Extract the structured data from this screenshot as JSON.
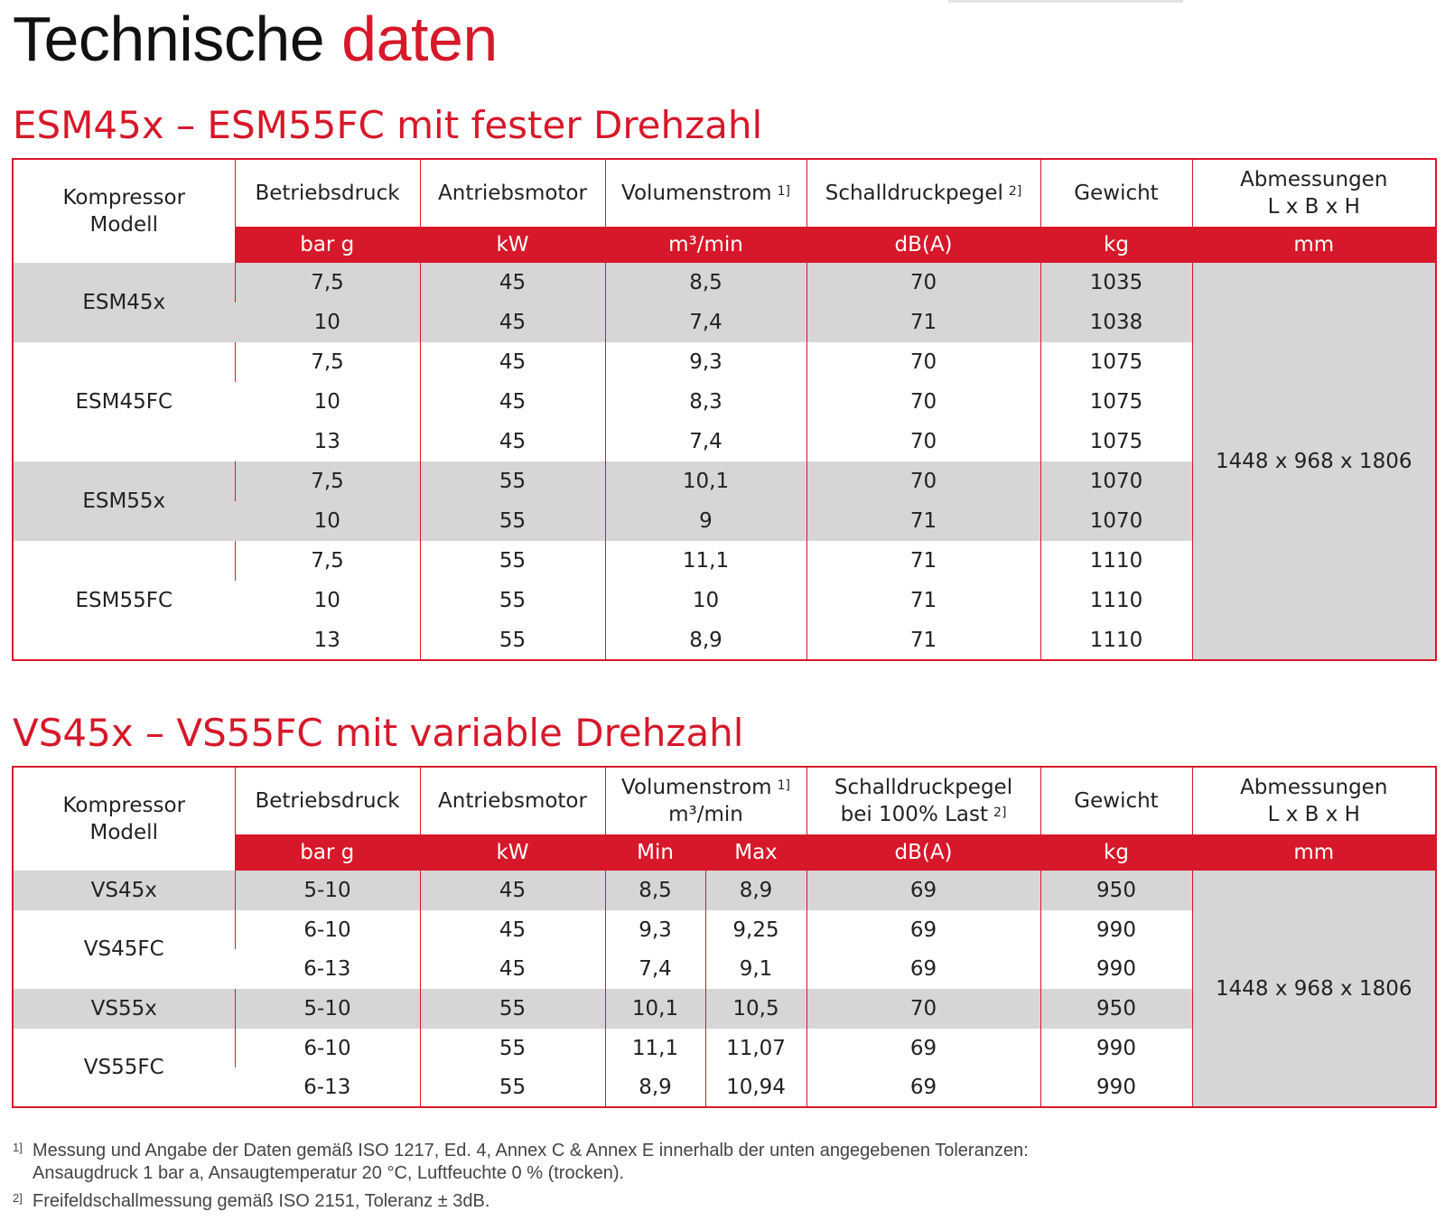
{
  "title": {
    "part1": "Technische",
    "part2": "daten"
  },
  "table1": {
    "title": "ESM45x – ESM55FC mit fester Drehzahl",
    "headers": {
      "model": [
        "Kompressor",
        "Modell"
      ],
      "pressure": "Betriebsdruck",
      "motor": "Antriebsmotor",
      "flow": "Volumenstrom",
      "flow_sup": "1]",
      "noise": "Schalldruckpegel",
      "noise_sup": "2]",
      "weight": "Gewicht",
      "dims": [
        "Abmessungen",
        "L x B x H"
      ]
    },
    "units": {
      "pressure": "bar g",
      "motor": "kW",
      "flow": "m³/min",
      "noise": "dB(A)",
      "weight": "kg",
      "dims": "mm"
    },
    "dims_value": "1448 x 968 x 1806",
    "groups": [
      {
        "model": "ESM45x",
        "rows": [
          {
            "pressure": "7,5",
            "motor": "45",
            "flow": "8,5",
            "noise": "70",
            "weight": "1035"
          },
          {
            "pressure": "10",
            "motor": "45",
            "flow": "7,4",
            "noise": "71",
            "weight": "1038"
          }
        ]
      },
      {
        "model": "ESM45FC",
        "rows": [
          {
            "pressure": "7,5",
            "motor": "45",
            "flow": "9,3",
            "noise": "70",
            "weight": "1075"
          },
          {
            "pressure": "10",
            "motor": "45",
            "flow": "8,3",
            "noise": "70",
            "weight": "1075"
          },
          {
            "pressure": "13",
            "motor": "45",
            "flow": "7,4",
            "noise": "70",
            "weight": "1075"
          }
        ]
      },
      {
        "model": "ESM55x",
        "rows": [
          {
            "pressure": "7,5",
            "motor": "55",
            "flow": "10,1",
            "noise": "70",
            "weight": "1070"
          },
          {
            "pressure": "10",
            "motor": "55",
            "flow": "9",
            "noise": "71",
            "weight": "1070"
          }
        ]
      },
      {
        "model": "ESM55FC",
        "rows": [
          {
            "pressure": "7,5",
            "motor": "55",
            "flow": "11,1",
            "noise": "71",
            "weight": "1110"
          },
          {
            "pressure": "10",
            "motor": "55",
            "flow": "10",
            "noise": "71",
            "weight": "1110"
          },
          {
            "pressure": "13",
            "motor": "55",
            "flow": "8,9",
            "noise": "71",
            "weight": "1110"
          }
        ]
      }
    ]
  },
  "table2": {
    "title": "VS45x – VS55FC mit variable Drehzahl",
    "headers": {
      "model": [
        "Kompressor",
        "Modell"
      ],
      "pressure": "Betriebsdruck",
      "motor": "Antriebsmotor",
      "flow": [
        "Volumenstrom",
        "m³/min"
      ],
      "flow_sup": "1]",
      "noise": [
        "Schalldruckpegel",
        "bei 100% Last"
      ],
      "noise_sup": "2]",
      "weight": "Gewicht",
      "dims": [
        "Abmessungen",
        "L x B x H"
      ]
    },
    "units": {
      "pressure": "bar g",
      "motor": "kW",
      "flow_min": "Min",
      "flow_max": "Max",
      "noise": "dB(A)",
      "weight": "kg",
      "dims": "mm"
    },
    "dims_value": "1448 x 968 x 1806",
    "groups": [
      {
        "model": "VS45x",
        "rows": [
          {
            "pressure": "5-10",
            "motor": "45",
            "min": "8,5",
            "max": "8,9",
            "noise": "69",
            "weight": "950"
          }
        ]
      },
      {
        "model": "VS45FC",
        "rows": [
          {
            "pressure": "6-10",
            "motor": "45",
            "min": "9,3",
            "max": "9,25",
            "noise": "69",
            "weight": "990"
          },
          {
            "pressure": "6-13",
            "motor": "45",
            "min": "7,4",
            "max": "9,1",
            "noise": "69",
            "weight": "990"
          }
        ]
      },
      {
        "model": "VS55x",
        "rows": [
          {
            "pressure": "5-10",
            "motor": "55",
            "min": "10,1",
            "max": "10,5",
            "noise": "70",
            "weight": "950"
          }
        ]
      },
      {
        "model": "VS55FC",
        "rows": [
          {
            "pressure": "6-10",
            "motor": "55",
            "min": "11,1",
            "max": "11,07",
            "noise": "69",
            "weight": "990"
          },
          {
            "pressure": "6-13",
            "motor": "55",
            "min": "8,9",
            "max": "10,94",
            "noise": "69",
            "weight": "990"
          }
        ]
      }
    ]
  },
  "footnotes": [
    {
      "num": "1]",
      "lines": [
        "Messung und Angabe der Daten gemäß ISO 1217, Ed. 4, Annex C & Annex E innerhalb der unten angegebenen Toleranzen:",
        "Ansaugdruck 1 bar a, Ansaugtemperatur 20 °C, Luftfeuchte 0 % (trocken)."
      ]
    },
    {
      "num": "2]",
      "lines": [
        "Freifeldschallmessung gemäß ISO 2151, Toleranz ± 3dB."
      ]
    }
  ]
}
